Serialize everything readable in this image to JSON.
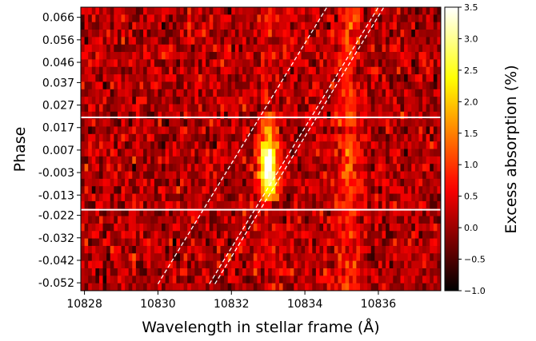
{
  "chart_data": {
    "type": "heatmap",
    "xlabel": "Wavelength in stellar frame (Å)",
    "ylabel": "Phase",
    "xlim": [
      10827.9,
      10837.7
    ],
    "ylim": [
      -0.0555,
      0.0705
    ],
    "x_ticks": [
      10828,
      10830,
      10832,
      10834,
      10836
    ],
    "y_ticks": [
      0.066,
      0.056,
      0.046,
      0.037,
      0.027,
      0.017,
      0.007,
      -0.003,
      -0.013,
      -0.022,
      -0.032,
      -0.042,
      -0.052
    ],
    "y_tick_labels": [
      "0.066",
      "0.056",
      "0.046",
      "0.037",
      "0.027",
      "0.017",
      "0.007",
      "-0.003",
      "-0.013",
      "-0.022",
      "-0.032",
      "-0.042",
      "-0.052"
    ],
    "colorbar": {
      "label": "Excess absorption (%)",
      "range": [
        -1.0,
        3.5
      ],
      "ticks": [
        3.5,
        3.0,
        2.5,
        2.0,
        1.5,
        1.0,
        0.5,
        0.0,
        -0.5,
        -1.0
      ],
      "tick_labels": [
        "3.5",
        "3.0",
        "2.5",
        "2.0",
        "1.5",
        "1.0",
        "0.5",
        "0.0",
        "−0.5",
        "−1.0"
      ],
      "colormap": "hot",
      "colors": [
        "#000000",
        "#e60000",
        "#ffd200",
        "#ffffff"
      ]
    },
    "transit_contacts_phase": [
      0.0215,
      -0.0195
    ],
    "planet_trail_lines": [
      {
        "wavelengths": [
          10830.0,
          10834.6
        ],
        "phases": [
          -0.0525,
          0.0705
        ]
      },
      {
        "wavelengths": [
          10831.4,
          10836.0
        ],
        "phases": [
          -0.0525,
          0.0705
        ]
      },
      {
        "wavelengths": [
          10831.55,
          10836.15
        ],
        "phases": [
          -0.0525,
          0.0705
        ]
      }
    ],
    "absorption_feature": {
      "center_wavelength": 10833.0,
      "phase_range": [
        -0.013,
        0.025
      ],
      "peak_excess_absorption": 3.5
    },
    "second_feature": {
      "center_wavelength": 10835.2,
      "peak_excess_absorption": 2.0
    }
  }
}
